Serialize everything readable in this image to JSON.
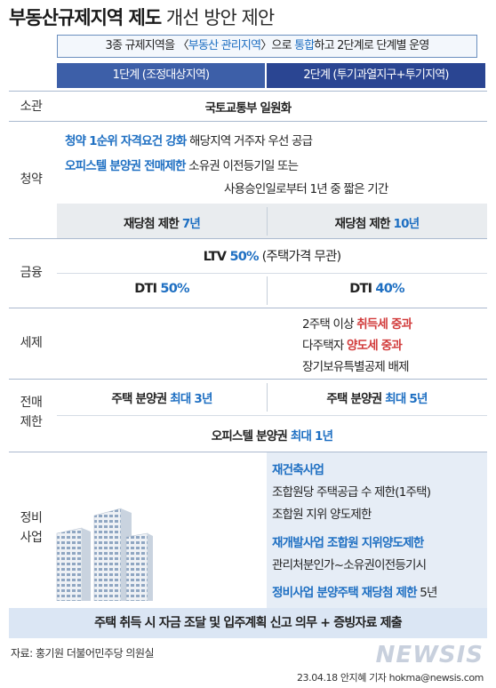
{
  "title": {
    "bold": "부동산규제지역 제도",
    "light": " 개선 방안 제안"
  },
  "subtitle": {
    "prefix": "3종 규제지역을 〈",
    "highlight": "부동산 관리지역",
    "mid": "〉으로 ",
    "highlight2": "통합",
    "suffix": "하고 2단계로 단계별 운영"
  },
  "columns": {
    "step1": "1단계 (조정대상지역)",
    "step2": "2단계 (투기과열지구+투기지역)"
  },
  "rows": {
    "jurisdiction": {
      "label": "소관",
      "value": "국토교통부 일원화"
    },
    "subscription": {
      "label": "청약",
      "line1_hl": "청약 1순위 자격요건 강화",
      "line1_rest": " 해당지역 거주자 우선 공급",
      "line2_hl": "오피스텔 분양권 전매제한",
      "line2_rest": " 소유권 이전등기일 또는",
      "line3": "사용승인일로부터 1년 중 짧은 기간",
      "rewin1_prefix": "재당첨 제한 ",
      "rewin1_value": "7년",
      "rewin2_prefix": "재당첨 제한 ",
      "rewin2_value": "10년"
    },
    "finance": {
      "label": "금융",
      "ltv_prefix": "LTV ",
      "ltv_value": "50%",
      "ltv_suffix": " (주택가격 무관)",
      "dti1_prefix": "DTI ",
      "dti1_value": "50%",
      "dti2_prefix": "DTI ",
      "dti2_value": "40%"
    },
    "tax": {
      "label": "세제",
      "line1_prefix": "2주택 이상 ",
      "line1_hl": "취득세 중과",
      "line2_prefix": "다주택자 ",
      "line2_hl": "양도세 중과",
      "line3": "장기보유특별공제 배제"
    },
    "resale": {
      "label1": "전매",
      "label2": "제한",
      "s1_prefix": "주택 분양권 ",
      "s1_value": "최대 3년",
      "s2_prefix": "주택 분양권 ",
      "s2_value": "최대 5년",
      "officetel_prefix": "오피스텔 분양권 ",
      "officetel_value": "최대  1년"
    },
    "maintenance": {
      "label1": "정비",
      "label2": "사업",
      "h1": "재건축사업",
      "l1": "조합원당 주택공급 수 제한(1주택)",
      "l2": "조합원 지위 양도제한",
      "h2": "재개발사업 조합원 지위양도제한",
      "l3": "관리처분인가~소유권이전등기시",
      "h3": "정비사업 분양주택 재당첨 제한",
      "h3_suffix": " 5년"
    }
  },
  "footer": "주택 취득 시 자금 조달 및 입주계획 신고 의무 + 증빙자료 제출",
  "source": "자료: 홍기원 더불어민주당 의원실",
  "credit": "23.04.18 안지혜 기자 hokma@newsis.com",
  "watermark": "NEWSIS",
  "colors": {
    "step1": "#3d5fa8",
    "step2": "#2a4592",
    "highlight": "#1e6fc2",
    "red": "#d23c3c",
    "footer_band": "#dbe6f4"
  }
}
